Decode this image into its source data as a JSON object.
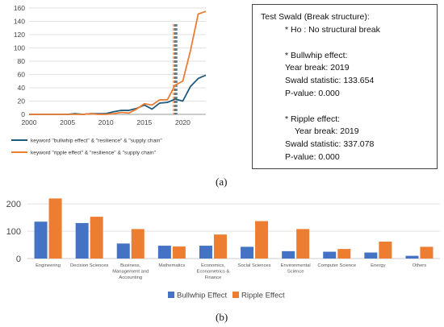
{
  "panel_a_label": "(a)",
  "panel_b_label": "(b)",
  "stats_box": {
    "title": "Test Swald (Break structure):",
    "h0": "* Ho : No structural break",
    "bullwhip_header": "* Bullwhip effect:",
    "bullwhip_year": "Year break: 2019",
    "bullwhip_stat": "Swald statistic: 133.654",
    "bullwhip_p": "P-value: 0.000",
    "ripple_header": "* Ripple effect:",
    "ripple_year": "Year break: 2019",
    "ripple_stat": "Swald statistic: 337.078",
    "ripple_p": "P-value: 0.000"
  },
  "chart_data": [
    {
      "type": "line",
      "x": [
        2000,
        2001,
        2002,
        2003,
        2004,
        2005,
        2006,
        2007,
        2008,
        2009,
        2010,
        2011,
        2012,
        2013,
        2014,
        2015,
        2016,
        2017,
        2018,
        2019,
        2020,
        2021,
        2022,
        2023
      ],
      "series": [
        {
          "name": "keyword \"bullwhip effect\" & \"resilience\" & \"supply chain\"",
          "color": "#1f5a7a",
          "values": [
            0,
            0,
            0,
            0,
            0,
            0,
            1,
            0,
            1,
            1,
            1,
            4,
            6,
            6,
            9,
            14,
            8,
            17,
            18,
            23,
            20,
            42,
            54,
            59
          ]
        },
        {
          "name": "keyword \"ripple effect\" & \"resilience\" & \"supply chain\"",
          "color": "#ed7d31",
          "values": [
            0,
            0,
            0,
            0,
            0,
            0,
            0,
            0,
            1,
            0,
            0,
            1,
            3,
            2,
            8,
            16,
            14,
            22,
            22,
            44,
            50,
            96,
            151,
            155
          ]
        }
      ],
      "xticks": [
        2000,
        2005,
        2010,
        2015,
        2020
      ],
      "yticks": [
        0,
        20,
        40,
        60,
        80,
        100,
        120,
        140,
        160
      ],
      "xlim": [
        2000,
        2023
      ],
      "ylim": [
        0,
        160
      ],
      "vline_x": 2019,
      "vline_colors": [
        "#ed7d31",
        "#222222",
        "#1f5a7a"
      ],
      "grid": "horizontal",
      "legend_position": "bottom"
    },
    {
      "type": "bar",
      "categories": [
        "Engineering",
        "Decision Sciences",
        "Business, Management and Accounting",
        "Mathematics",
        "Economics, Econometrics & Finance",
        "Social Sciences",
        "Environmental Science",
        "Computer Science",
        "Energy",
        "Others"
      ],
      "category_lines": [
        [
          "Engineering"
        ],
        [
          "Decision Sciences"
        ],
        [
          "Business,",
          "Management and",
          "Accounting"
        ],
        [
          "Mathematics"
        ],
        [
          "Economics,",
          "Econometrics &",
          "Finance"
        ],
        [
          "Social Sciences"
        ],
        [
          "Environmental",
          "Science"
        ],
        [
          "Computer Science"
        ],
        [
          "Energy"
        ],
        [
          "Others"
        ]
      ],
      "series": [
        {
          "name": "Bullwhip Effect",
          "color": "#4472c4",
          "values": [
            135,
            130,
            55,
            47,
            47,
            43,
            27,
            25,
            22,
            10
          ]
        },
        {
          "name": "Ripple Effect",
          "color": "#ed7d31",
          "values": [
            220,
            153,
            108,
            44,
            88,
            137,
            108,
            35,
            62,
            43
          ]
        }
      ],
      "yticks": [
        0,
        100,
        200
      ],
      "ylim": [
        0,
        230
      ],
      "grid": "horizontal",
      "legend_position": "bottom"
    }
  ]
}
